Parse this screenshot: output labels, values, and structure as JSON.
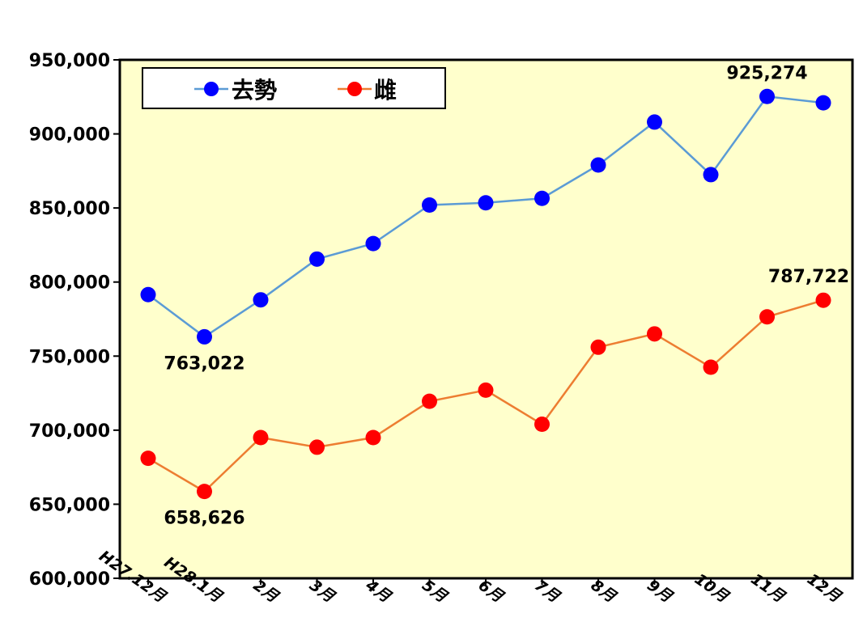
{
  "chart_data": {
    "type": "line",
    "categories": [
      "H27.12月",
      "H28.1月",
      "2月",
      "3月",
      "4月",
      "5月",
      "6月",
      "7月",
      "8月",
      "9月",
      "10月",
      "11月",
      "12月"
    ],
    "ylim": [
      600000,
      950000
    ],
    "yticks": [
      600000,
      650000,
      700000,
      750000,
      800000,
      850000,
      900000,
      950000
    ],
    "ytick_labels": [
      "600,000",
      "650,000",
      "700,000",
      "750,000",
      "800,000",
      "850,000",
      "900,000",
      "950,000"
    ],
    "series": [
      {
        "name": "去勢",
        "color": "#0000ff",
        "line_color": "#5b9bd5",
        "values": [
          791500,
          763022,
          788000,
          815500,
          826000,
          852000,
          853500,
          856500,
          879000,
          908000,
          872500,
          925274,
          921000
        ]
      },
      {
        "name": "雌",
        "color": "#ff0000",
        "line_color": "#ed7d31",
        "values": [
          681000,
          658626,
          695000,
          688500,
          695000,
          719500,
          727000,
          704000,
          756000,
          765000,
          742500,
          776500,
          787722
        ]
      }
    ],
    "annotations": [
      {
        "series": 0,
        "index": 1,
        "text": "763,022",
        "position": "below"
      },
      {
        "series": 1,
        "index": 1,
        "text": "658,626",
        "position": "below"
      },
      {
        "series": 0,
        "index": 11,
        "text": "925,274",
        "position": "above"
      },
      {
        "series": 1,
        "index": 12,
        "text": "787,722",
        "position": "above"
      }
    ],
    "plot_background": "#ffffcc",
    "grid": false,
    "legend_placement": "top-left"
  }
}
